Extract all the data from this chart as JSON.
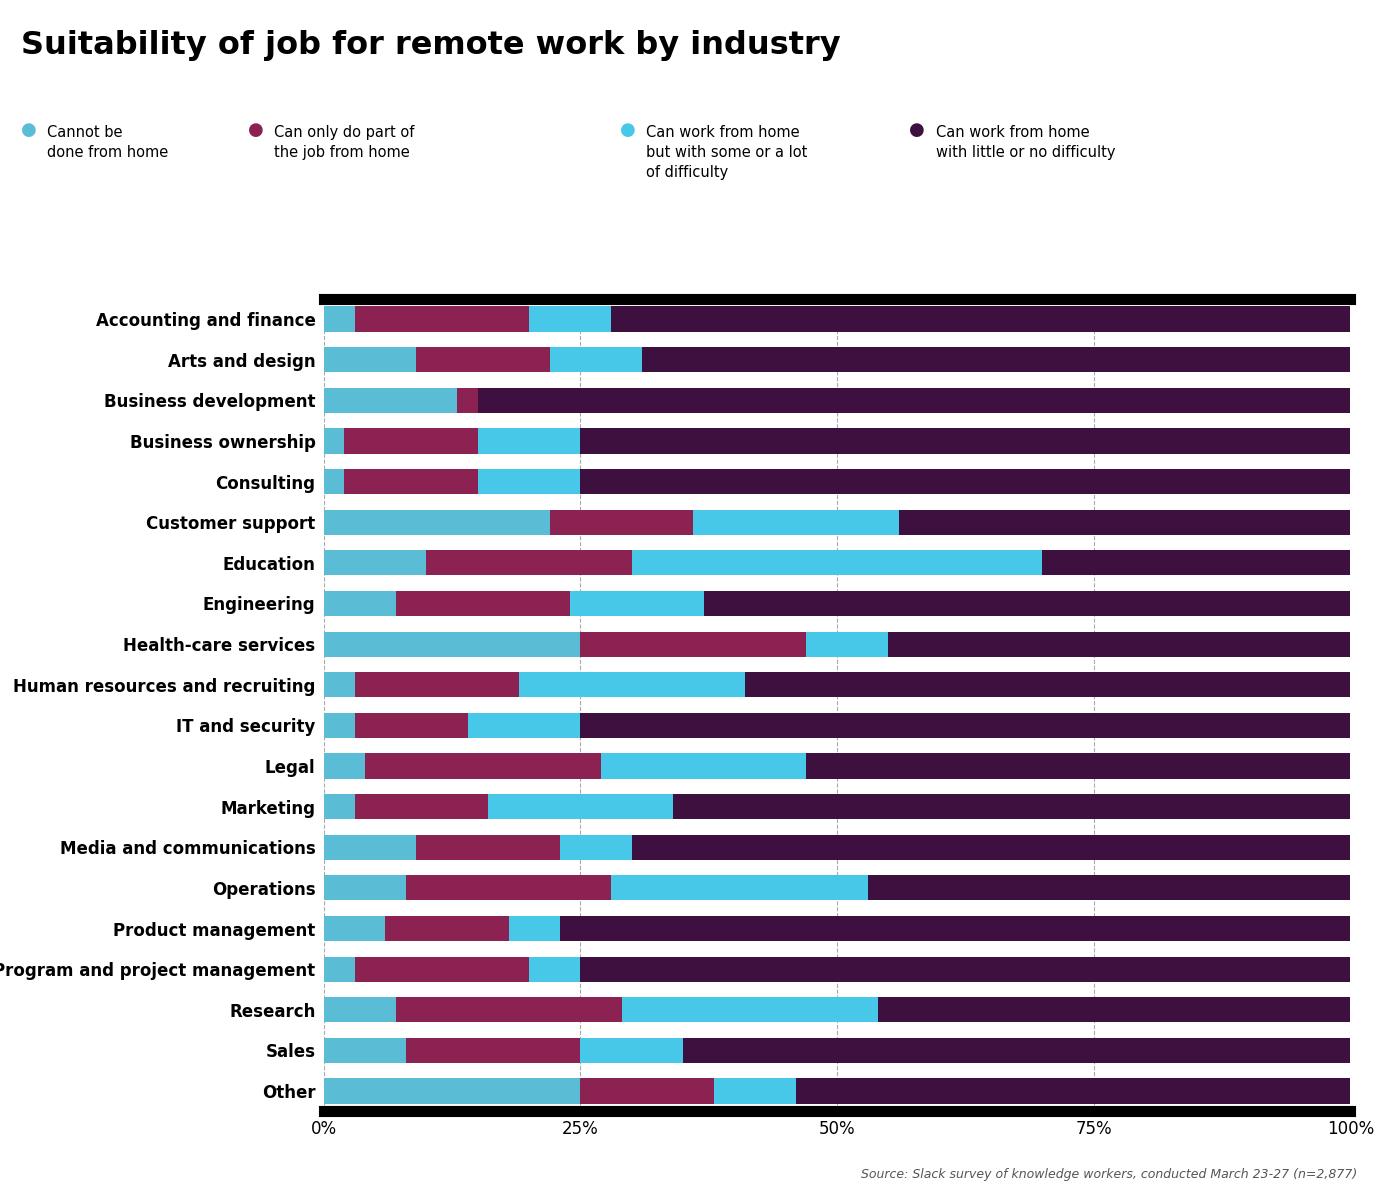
{
  "title": "Suitability of job for remote work by industry",
  "categories": [
    "Accounting and finance",
    "Arts and design",
    "Business development",
    "Business ownership",
    "Consulting",
    "Customer support",
    "Education",
    "Engineering",
    "Health-care services",
    "Human resources and recruiting",
    "IT and security",
    "Legal",
    "Marketing",
    "Media and communications",
    "Operations",
    "Product management",
    "Program and project management",
    "Research",
    "Sales",
    "Other"
  ],
  "legend_labels": [
    "Cannot be\ndone from home",
    "Can only do part of\nthe job from home",
    "Can work from home\nbut with some or a lot\nof difficulty",
    "Can work from home\nwith little or no difficulty"
  ],
  "colors": [
    "#5bbcd6",
    "#8b2252",
    "#47c8e8",
    "#3d1040"
  ],
  "data": [
    [
      3,
      17,
      8,
      72
    ],
    [
      9,
      13,
      9,
      69
    ],
    [
      13,
      2,
      0,
      85
    ],
    [
      2,
      13,
      10,
      75
    ],
    [
      2,
      13,
      10,
      75
    ],
    [
      22,
      14,
      20,
      44
    ],
    [
      10,
      20,
      40,
      30
    ],
    [
      7,
      17,
      13,
      63
    ],
    [
      25,
      22,
      8,
      45
    ],
    [
      3,
      16,
      22,
      59
    ],
    [
      3,
      11,
      11,
      75
    ],
    [
      4,
      23,
      20,
      53
    ],
    [
      3,
      13,
      18,
      66
    ],
    [
      9,
      14,
      7,
      70
    ],
    [
      8,
      20,
      25,
      47
    ],
    [
      6,
      12,
      5,
      77
    ],
    [
      3,
      17,
      5,
      75
    ],
    [
      7,
      22,
      25,
      46
    ],
    [
      8,
      17,
      10,
      65
    ],
    [
      25,
      13,
      8,
      54
    ]
  ],
  "source_text": "Source: Slack survey of knowledge workers, conducted March 23-27 (n=2,877)",
  "background_color": "#ffffff",
  "bar_height": 0.62,
  "xlim": [
    0,
    100
  ],
  "xticks": [
    0,
    25,
    50,
    75,
    100
  ],
  "xticklabels": [
    "0%",
    "25%",
    "50%",
    "75%",
    "100%"
  ]
}
